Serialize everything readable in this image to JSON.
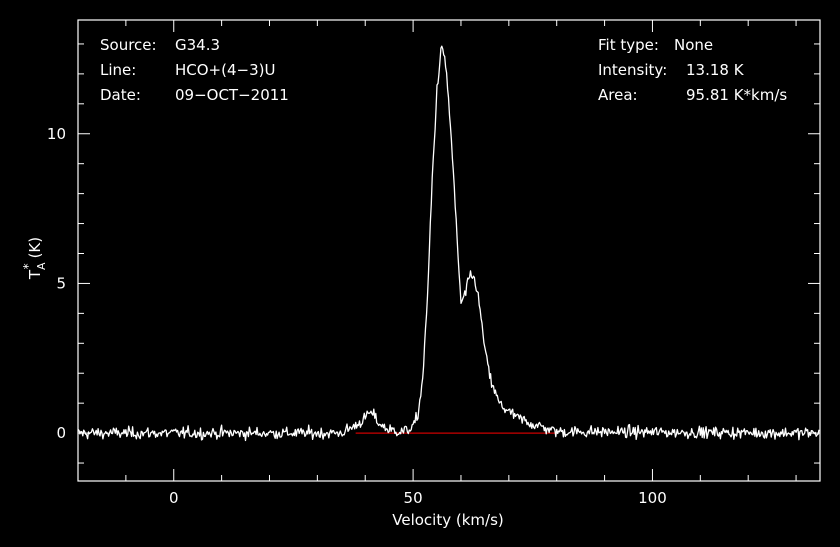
{
  "info": {
    "source_label": "Source:",
    "source_value": "G34.3",
    "line_label": "Line:",
    "line_value": "HCO+(4−3)U",
    "date_label": "Date:",
    "date_value": "09−OCT−2011",
    "fit_type_label": "Fit type:",
    "fit_type_value": "None",
    "intensity_label": "Intensity:",
    "intensity_value": "13.18 K",
    "area_label": "Area:",
    "area_value": "95.81 K*km/s"
  },
  "colors": {
    "background": "#000000",
    "foreground": "#ffffff",
    "baseline": "#cc0000"
  },
  "chart_data": {
    "type": "line",
    "title": "",
    "xlabel": "Velocity (km/s)",
    "ylabel_main": "T",
    "ylabel_sup": "*",
    "ylabel_sub": "A",
    "ylabel_unit": "(K)",
    "xlim": [
      -20,
      135
    ],
    "ylim": [
      -1.6,
      13.8
    ],
    "x_ticks": [
      0,
      50,
      100
    ],
    "y_ticks": [
      0,
      5,
      10
    ],
    "x_tick_labels": [
      "0",
      "50",
      "100"
    ],
    "y_tick_labels": [
      "0",
      "5",
      "10"
    ],
    "baseline": {
      "x": [
        38,
        80
      ],
      "y": 0
    },
    "noise_rms": 0.15,
    "series": [
      {
        "x": [
          -20,
          35,
          38,
          40,
          41,
          42,
          43,
          45,
          48,
          50,
          51,
          52,
          53,
          54,
          55,
          56,
          57,
          58,
          59,
          60,
          61,
          62,
          63,
          64,
          65,
          66,
          67,
          68,
          70,
          72,
          75,
          80,
          135
        ],
        "y": [
          0,
          0,
          0.25,
          0.5,
          0.7,
          0.55,
          0.3,
          0.1,
          0.05,
          0.2,
          0.6,
          1.8,
          4.5,
          8.5,
          11.5,
          13.0,
          12.0,
          9.8,
          7.0,
          4.3,
          4.7,
          5.3,
          5.1,
          4.1,
          2.8,
          1.9,
          1.4,
          1.0,
          0.7,
          0.5,
          0.3,
          0.05,
          0
        ]
      }
    ]
  }
}
